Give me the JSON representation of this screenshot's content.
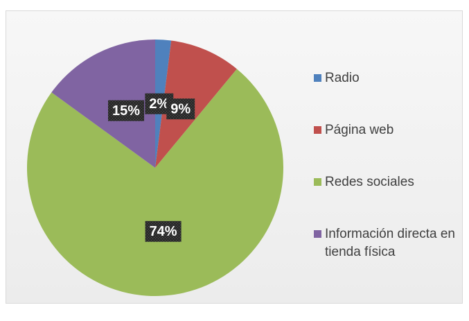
{
  "chart_data": {
    "type": "pie",
    "categories": [
      "Radio",
      "Página web",
      "Redes sociales",
      "Información directa en tienda física"
    ],
    "values": [
      2,
      9,
      74,
      15
    ],
    "value_labels": [
      "2%",
      "9%",
      "74%",
      "15%"
    ],
    "colors": [
      "#4f81bd",
      "#c0504d",
      "#9bbb59",
      "#8064a2"
    ],
    "legend": "right"
  }
}
